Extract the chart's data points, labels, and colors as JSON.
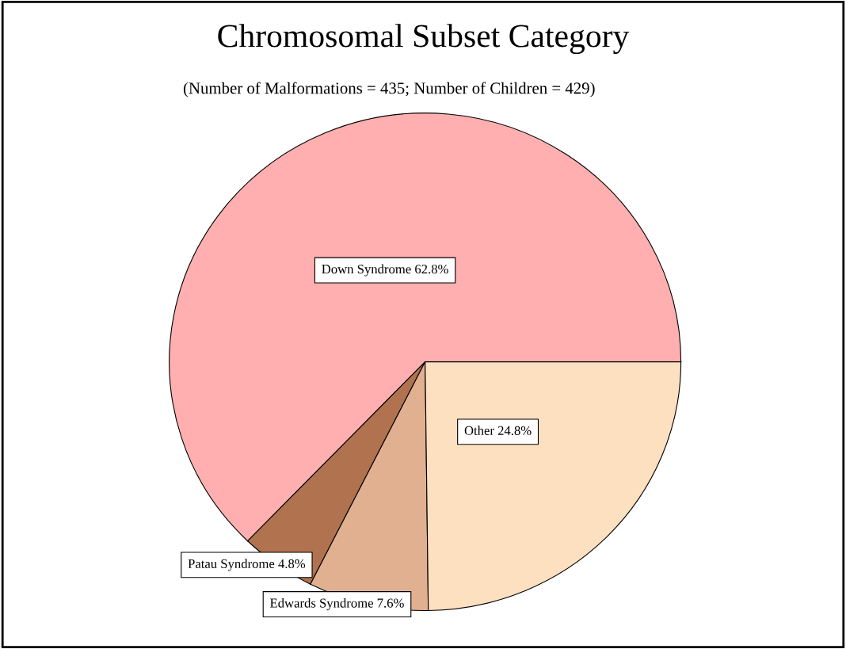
{
  "chart_data": {
    "type": "pie",
    "title": "Chromosomal Subset Category",
    "subtitle": "(Number of Malformations = 435; Number of Children = 429)",
    "categories": [
      "Down Syndrome",
      "Patau Syndrome",
      "Edwards Syndrome",
      "Other"
    ],
    "values": [
      62.8,
      4.8,
      7.6,
      24.8
    ],
    "value_labels": [
      "62.8%",
      "4.8%",
      "7.6%",
      "24.8%"
    ],
    "colors": [
      "#ffafaf",
      "#b0724f",
      "#e0b090",
      "#fde0c0"
    ]
  }
}
